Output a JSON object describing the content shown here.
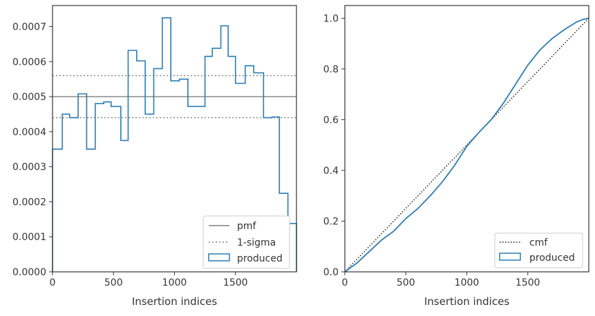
{
  "chart_data": [
    {
      "type": "step-histogram",
      "xlabel": "Insertion indices",
      "ylabel": "",
      "xlim": [
        0,
        2000
      ],
      "ylim": [
        0,
        0.00076
      ],
      "xticks": [
        0,
        500,
        1000,
        1500
      ],
      "xtick_labels": [
        "0",
        "500",
        "1000",
        "1500"
      ],
      "yticks": [
        0,
        0.0001,
        0.0002,
        0.0003,
        0.0004,
        0.0005,
        0.0006,
        0.0007
      ],
      "ytick_labels": [
        "0.0000",
        "0.0001",
        "0.0002",
        "0.0003",
        "0.0004",
        "0.0005",
        "0.0006",
        "0.0007"
      ],
      "bin_edges": [
        0,
        80,
        140,
        210,
        280,
        350,
        420,
        480,
        560,
        620,
        690,
        760,
        830,
        900,
        970,
        1040,
        1110,
        1250,
        1310,
        1380,
        1440,
        1500,
        1580,
        1650,
        1730,
        1800,
        1860,
        1930,
        2000
      ],
      "produced_values": [
        0.00035,
        0.00045,
        0.00044,
        0.000508,
        0.00035,
        0.00048,
        0.000485,
        0.000472,
        0.000375,
        0.000632,
        0.000602,
        0.00045,
        0.00058,
        0.000725,
        0.000545,
        0.00055,
        0.000472,
        0.000615,
        0.000638,
        0.000702,
        0.000615,
        0.000538,
        0.000588,
        0.000568,
        0.00044,
        0.000442,
        0.000224,
        0.000138
      ],
      "pmf": 0.0005,
      "sigma_band": [
        0.00044,
        0.00056
      ],
      "legend_location": "lower-right",
      "legend": [
        "pmf",
        "1-sigma",
        "produced"
      ]
    },
    {
      "type": "line",
      "xlabel": "Insertion indices",
      "ylabel": "",
      "xlim": [
        0,
        2000
      ],
      "ylim": [
        0,
        1.05
      ],
      "xticks": [
        0,
        500,
        1000,
        1500
      ],
      "xtick_labels": [
        "0",
        "500",
        "1000",
        "1500"
      ],
      "yticks": [
        0,
        0.2,
        0.4,
        0.6,
        0.8,
        1.0
      ],
      "ytick_labels": [
        "0.0",
        "0.2",
        "0.4",
        "0.6",
        "0.8",
        "1.0"
      ],
      "cmf": {
        "x": [
          0,
          2000
        ],
        "y": [
          0,
          1.0
        ]
      },
      "produced": {
        "x": [
          0,
          100,
          200,
          300,
          400,
          500,
          600,
          700,
          800,
          900,
          1000,
          1100,
          1200,
          1300,
          1400,
          1500,
          1600,
          1700,
          1800,
          1900,
          1950,
          2000
        ],
        "y": [
          0,
          0.035,
          0.08,
          0.125,
          0.16,
          0.21,
          0.25,
          0.3,
          0.355,
          0.42,
          0.495,
          0.55,
          0.6,
          0.665,
          0.74,
          0.815,
          0.875,
          0.92,
          0.955,
          0.985,
          0.995,
          1.0
        ]
      },
      "legend_location": "lower-right",
      "legend": [
        "cmf",
        "produced"
      ]
    }
  ],
  "colors": {
    "produced": "#2a7bb4",
    "pmf": "#7f7f7f",
    "sigma": "#7f7f7f",
    "cmf": "#111111",
    "axes": "#333333"
  }
}
